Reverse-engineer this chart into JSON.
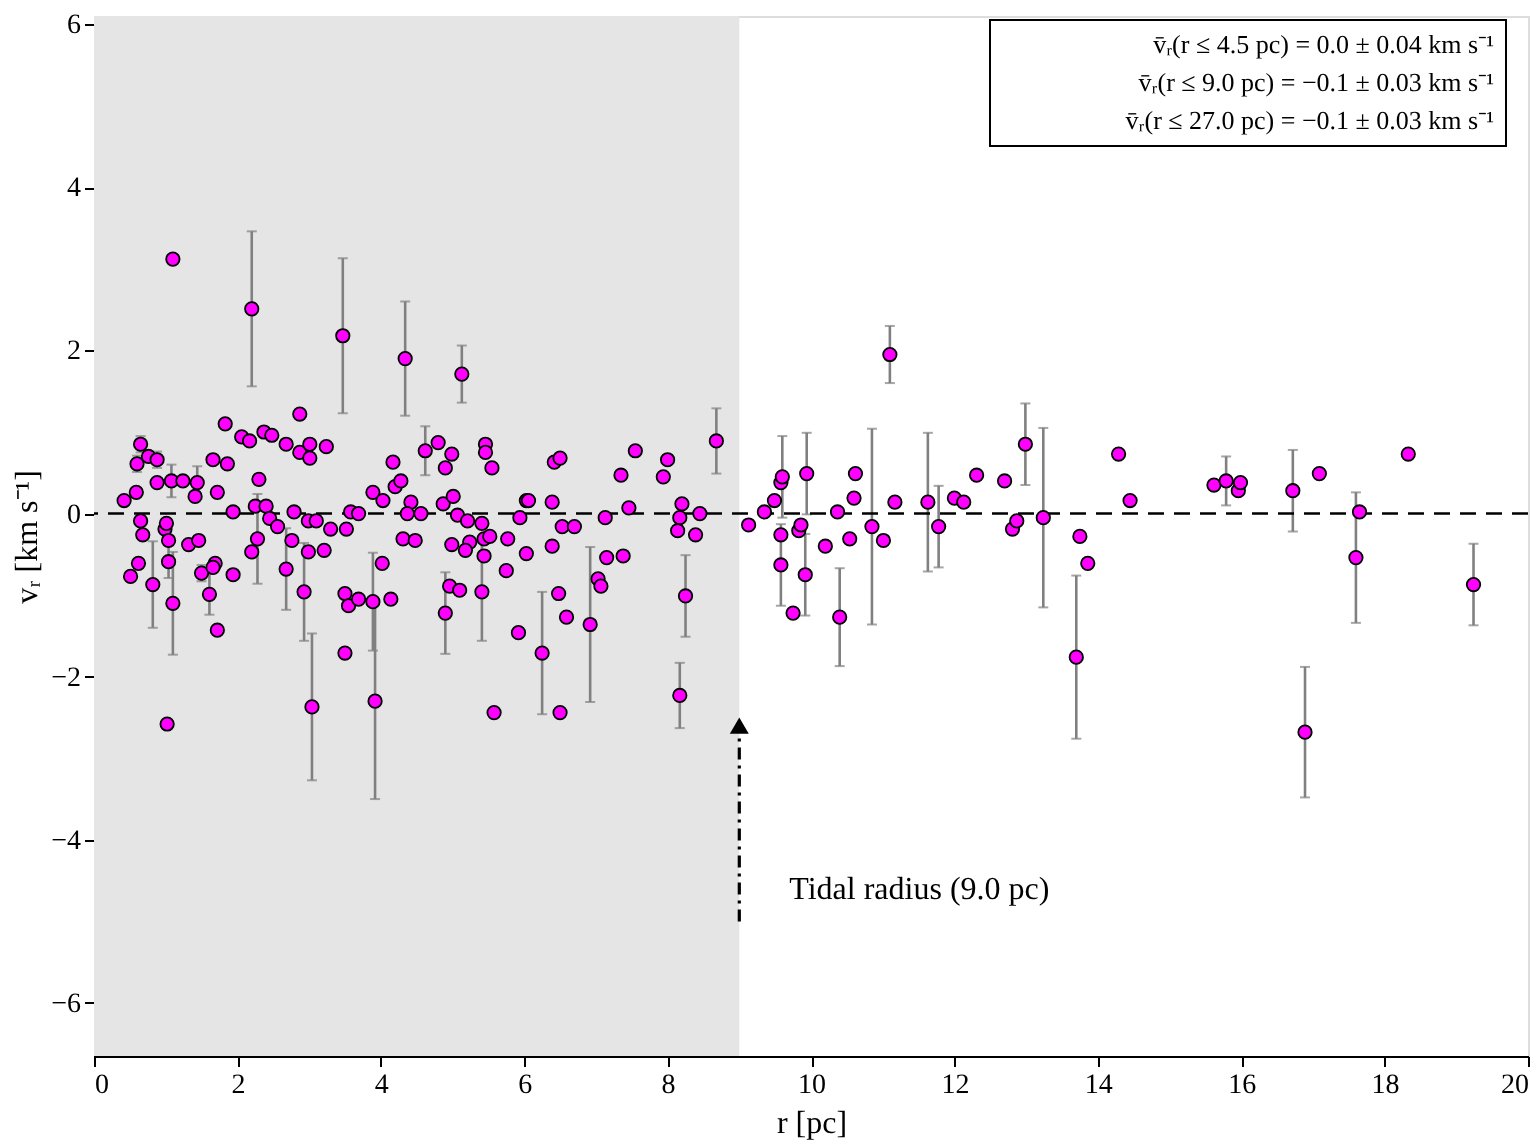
{
  "chart_data": {
    "type": "scatter",
    "xlabel": "r [pc]",
    "ylabel": "vᵣ [km s⁻¹]",
    "xlim": [
      0,
      20
    ],
    "xticks": [
      0,
      2,
      4,
      6,
      8,
      10,
      12,
      14,
      16,
      18,
      20
    ],
    "ylim": [
      -6.65,
      6.1
    ],
    "yticks": [
      -6,
      -4,
      -2,
      0,
      2,
      4,
      6
    ],
    "marker": "circle",
    "grid": false,
    "ref_lines": [
      {
        "axis": "y",
        "value": 0,
        "color": "#000000",
        "line_style": "dashed"
      }
    ],
    "bands": [
      {
        "axis": "x",
        "from": 0,
        "to": 9,
        "color": "#e5e5e5"
      }
    ],
    "annotations": [
      {
        "text": "Tidal radius (9.0 pc)",
        "x": 9,
        "y": -4.6
      },
      "v̄ᵣ(r ≤ 4.5 pc) = 0.0 ± 0.04 km s⁻¹",
      "v̄ᵣ(r ≤ 9.0 pc) = −0.1 ± 0.03 km s⁻¹",
      "v̄ᵣ(r ≤ 27.0 pc) = −0.1 ± 0.03 km s⁻¹"
    ],
    "series": [
      {
        "color": "#ff00ff",
        "x": [
          0.42,
          0.59,
          0.65,
          0.6,
          0.76,
          0.88,
          0.88,
          0.65,
          0.68,
          0.62,
          0.51,
          0.82,
          1.1,
          1.02,
          1.1,
          1.04,
          0.99,
          1.04,
          1.01,
          1.08,
          1.24,
          1.44,
          1.41,
          1.32,
          1.46,
          1.5,
          1.61,
          1.72,
          1.69,
          1.66,
          1.72,
          1.66,
          1.86,
          1.83,
          1.94,
          1.94,
          2.06,
          2.2,
          2.17,
          2.2,
          2.28,
          2.3,
          2.25,
          2.37,
          2.48,
          2.4,
          2.45,
          2.56,
          2.68,
          2.68,
          2.79,
          2.76,
          2.87,
          2.87,
          3.01,
          3.01,
          2.93,
          3.04,
          2.99,
          2.99,
          3.47,
          4.34,
          5.13,
          3.5,
          3.92,
          3.5,
          3.55,
          3.69,
          3.89,
          4.14,
          4.02,
          3.52,
          3.3,
          3.21,
          3.1,
          3.24,
          3.58,
          3.69,
          3.89,
          4.03,
          4.17,
          4.2,
          4.28,
          4.31,
          4.42,
          4.37,
          4.48,
          4.56,
          4.62,
          4.8,
          4.9,
          4.99,
          4.87,
          5.01,
          5.07,
          5.21,
          4.99,
          4.96,
          4.9,
          5.1,
          5.24,
          5.18,
          5.41,
          5.44,
          5.46,
          5.46,
          5.55,
          5.41,
          5.58,
          5.44,
          5.52,
          5.75,
          5.77,
          5.92,
          5.94,
          6.03,
          6.03,
          6.06,
          6.25,
          6.5,
          6.48,
          6.59,
          6.39,
          6.39,
          6.42,
          6.5,
          6.53,
          6.7,
          6.92,
          7.03,
          7.07,
          7.15,
          7.13,
          7.38,
          7.46,
          7.35,
          7.55,
          7.94,
          8.0,
          8.2,
          8.17,
          8.14,
          8.25,
          8.17,
          8.39,
          8.45,
          8.68,
          9.13,
          9.35,
          9.49,
          9.58,
          9.6,
          9.58,
          9.58,
          9.75,
          9.83,
          9.86,
          9.94,
          9.92,
          10.2,
          10.37,
          10.4,
          10.54,
          10.6,
          10.62,
          10.85,
          11.01,
          11.1,
          11.17,
          11.63,
          11.78,
          12.0,
          12.13,
          12.31,
          12.7,
          12.81,
          12.87,
          12.99,
          13.24,
          13.75,
          13.86,
          13.7,
          14.29,
          14.45,
          15.62,
          15.79,
          15.96,
          15.99,
          16.72,
          16.89,
          17.09,
          17.6,
          17.65,
          18.33,
          19.24
        ],
        "values": [
          0.16,
          0.26,
          0.85,
          0.61,
          0.7,
          0.66,
          0.38,
          -0.09,
          -0.26,
          -0.61,
          -0.77,
          -0.87,
          3.12,
          -2.58,
          -1.1,
          -0.59,
          -0.19,
          -0.33,
          -0.12,
          0.4,
          0.4,
          0.38,
          0.21,
          -0.38,
          -0.33,
          -0.73,
          -0.99,
          -1.43,
          -0.61,
          -0.66,
          0.26,
          0.66,
          0.61,
          1.1,
          -0.75,
          0.02,
          0.94,
          2.51,
          0.89,
          -0.47,
          -0.31,
          0.42,
          0.09,
          1.0,
          0.96,
          0.09,
          -0.06,
          -0.16,
          -0.68,
          0.85,
          0.02,
          -0.33,
          1.22,
          0.75,
          0.85,
          0.68,
          -0.96,
          -2.37,
          -0.09,
          -0.47,
          2.18,
          1.9,
          1.71,
          -1.71,
          -2.3,
          -0.98,
          -1.13,
          -1.05,
          -1.08,
          -1.05,
          -0.61,
          -0.19,
          -0.19,
          -0.45,
          -0.09,
          0.82,
          0.02,
          0.0,
          0.26,
          0.16,
          0.63,
          0.33,
          0.4,
          -0.31,
          0.14,
          0.0,
          -0.33,
          0.0,
          0.77,
          0.87,
          0.56,
          0.73,
          0.12,
          0.21,
          -0.02,
          -0.09,
          -0.38,
          -0.89,
          -1.22,
          -0.94,
          -0.35,
          -0.45,
          -0.12,
          -0.31,
          0.85,
          0.75,
          0.56,
          -0.96,
          -2.44,
          -0.52,
          -0.28,
          -0.7,
          -0.31,
          -1.46,
          -0.05,
          0.16,
          -0.49,
          0.16,
          -1.71,
          -2.44,
          -0.98,
          -1.27,
          -0.4,
          0.14,
          0.63,
          0.68,
          -0.16,
          -0.16,
          -1.36,
          -0.8,
          -0.89,
          -0.54,
          -0.05,
          -0.52,
          0.07,
          0.47,
          0.77,
          0.45,
          0.66,
          0.12,
          -0.05,
          -0.21,
          -1.01,
          -2.23,
          -0.26,
          0.0,
          0.89,
          -0.14,
          0.02,
          0.16,
          0.38,
          0.45,
          -0.26,
          -0.63,
          -1.22,
          -0.21,
          -0.14,
          0.49,
          -0.75,
          -0.4,
          0.02,
          -1.27,
          -0.31,
          0.19,
          0.49,
          -0.16,
          -0.33,
          1.95,
          0.14,
          0.14,
          -0.16,
          0.19,
          0.14,
          0.47,
          0.4,
          -0.19,
          -0.09,
          0.85,
          -0.05,
          -0.28,
          -0.61,
          -1.76,
          0.73,
          0.16,
          0.35,
          0.4,
          0.28,
          0.38,
          0.28,
          -2.68,
          0.49,
          -0.54,
          0.02,
          0.73,
          -0.87
        ],
        "errors": [
          null,
          null,
          0.1,
          0.1,
          null,
          0.1,
          null,
          null,
          null,
          null,
          null,
          0.53,
          null,
          null,
          0.63,
          0.2,
          null,
          null,
          null,
          0.2,
          null,
          0.2,
          null,
          null,
          null,
          0.1,
          0.25,
          null,
          null,
          null,
          null,
          null,
          null,
          null,
          null,
          null,
          null,
          0.95,
          null,
          null,
          0.55,
          null,
          null,
          null,
          null,
          null,
          null,
          null,
          0.5,
          null,
          null,
          null,
          null,
          null,
          null,
          null,
          0.6,
          0.9,
          null,
          null,
          0.95,
          0.7,
          0.35,
          null,
          1.2,
          null,
          null,
          null,
          0.6,
          null,
          null,
          null,
          null,
          null,
          null,
          null,
          null,
          null,
          null,
          null,
          null,
          null,
          null,
          null,
          null,
          null,
          null,
          null,
          0.3,
          null,
          null,
          null,
          null,
          null,
          null,
          null,
          null,
          null,
          0.5,
          null,
          null,
          null,
          null,
          null,
          null,
          null,
          null,
          0.6,
          null,
          null,
          null,
          null,
          null,
          null,
          null,
          null,
          null,
          null,
          0.75,
          null,
          null,
          null,
          null,
          null,
          null,
          null,
          null,
          null,
          0.95,
          null,
          null,
          null,
          null,
          null,
          null,
          null,
          null,
          null,
          null,
          null,
          null,
          null,
          0.5,
          0.4,
          null,
          null,
          0.4,
          null,
          null,
          null,
          null,
          0.5,
          null,
          0.5,
          null,
          null,
          null,
          0.5,
          0.5,
          null,
          null,
          0.6,
          null,
          null,
          null,
          1.2,
          null,
          0.35,
          null,
          0.85,
          0.5,
          null,
          null,
          null,
          null,
          null,
          null,
          0.5,
          1.1,
          null,
          null,
          1.0,
          null,
          null,
          null,
          0.3,
          null,
          null,
          0.5,
          0.8,
          null,
          0.8,
          null,
          null,
          0.5
        ]
      }
    ]
  }
}
